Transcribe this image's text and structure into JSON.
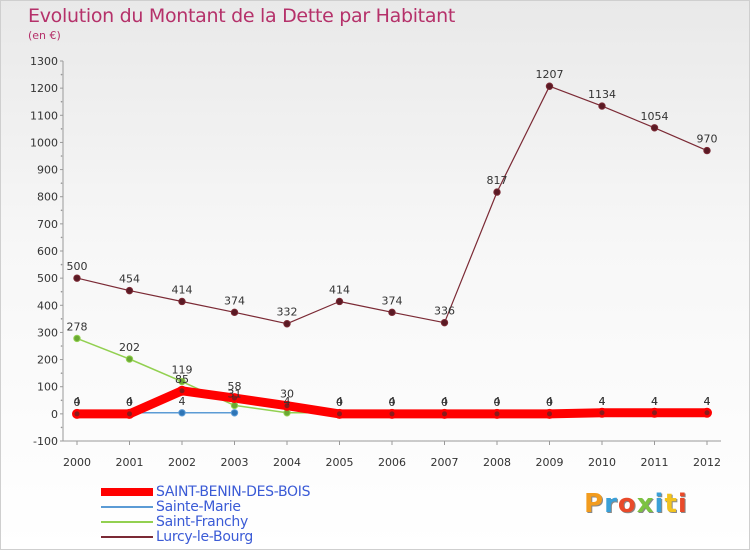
{
  "header": {
    "title": "Evolution du Montant de la Dette par Habitant",
    "subtitle": "(en €)"
  },
  "logo": {
    "text": "Proxiti"
  },
  "chart_data": {
    "type": "line",
    "title": "Evolution du Montant de la Dette par Habitant",
    "subtitle": "(en €)",
    "xlabel": "",
    "ylabel": "",
    "x": [
      "2000",
      "2001",
      "2002",
      "2003",
      "2004",
      "2005",
      "2006",
      "2007",
      "2008",
      "2009",
      "2010",
      "2011",
      "2012"
    ],
    "ylim": [
      -100,
      1300
    ],
    "yticks": [
      -100,
      0,
      100,
      200,
      300,
      400,
      500,
      600,
      700,
      800,
      900,
      1000,
      1100,
      1200,
      1300
    ],
    "grid": false,
    "legend_position": "bottom-left",
    "series": [
      {
        "name": "SAINT-BENIN-DES-BOIS",
        "color": "#ff0000",
        "marker": "#8b1a1a",
        "values": [
          0,
          0,
          85,
          58,
          30,
          0,
          0,
          0,
          0,
          0,
          4,
          4,
          4
        ]
      },
      {
        "name": "Sainte-Marie",
        "color": "#5b9bd5",
        "marker": "#2e75b6",
        "values": [
          4,
          4,
          4,
          4,
          null,
          null,
          null,
          null,
          null,
          null,
          null,
          null,
          null
        ]
      },
      {
        "name": "Saint-Franchy",
        "color": "#92d050",
        "marker": "#6aa832",
        "values": [
          278,
          202,
          119,
          31,
          4,
          4,
          4,
          4,
          4,
          4,
          4,
          4,
          4
        ]
      },
      {
        "name": "Lurcy-le-Bourg",
        "color": "#7b2a35",
        "marker": "#5a1a24",
        "values": [
          500,
          454,
          414,
          374,
          332,
          414,
          374,
          336,
          817,
          1207,
          1134,
          1054,
          970
        ]
      }
    ],
    "labeled_points": [
      {
        "x": "2000",
        "text": "500",
        "value": 500
      },
      {
        "x": "2001",
        "text": "454",
        "value": 454
      },
      {
        "x": "2002",
        "text": "414",
        "value": 414
      },
      {
        "x": "2003",
        "text": "374",
        "value": 374
      },
      {
        "x": "2004",
        "text": "332",
        "value": 332
      },
      {
        "x": "2005",
        "text": "414",
        "value": 414
      },
      {
        "x": "2006",
        "text": "374",
        "value": 374
      },
      {
        "x": "2007",
        "text": "336",
        "value": 336
      },
      {
        "x": "2008",
        "text": "817",
        "value": 817
      },
      {
        "x": "2009",
        "text": "1207",
        "value": 1207
      },
      {
        "x": "2010",
        "text": "1134",
        "value": 1134
      },
      {
        "x": "2011",
        "text": "1054",
        "value": 1054
      },
      {
        "x": "2012",
        "text": "970",
        "value": 970
      },
      {
        "x": "2000",
        "text": "278",
        "value": 278
      },
      {
        "x": "2001",
        "text": "202",
        "value": 202
      },
      {
        "x": "2002",
        "text": "119",
        "value": 119
      },
      {
        "x": "2002",
        "text": "85",
        "value": 85
      },
      {
        "x": "2003",
        "text": "58",
        "value": 58
      },
      {
        "x": "2003",
        "text": "31",
        "value": 31
      },
      {
        "x": "2004",
        "text": "30",
        "value": 30
      },
      {
        "x": "2000",
        "text": "0",
        "value": 0
      },
      {
        "x": "2000",
        "text": "4",
        "value": 4
      },
      {
        "x": "2001",
        "text": "0",
        "value": 0
      },
      {
        "x": "2001",
        "text": "4",
        "value": 4
      },
      {
        "x": "2002",
        "text": "4",
        "value": 4
      },
      {
        "x": "2004",
        "text": "4",
        "value": 4
      },
      {
        "x": "2005",
        "text": "0",
        "value": 0
      },
      {
        "x": "2005",
        "text": "4",
        "value": 4
      },
      {
        "x": "2006",
        "text": "0",
        "value": 0
      },
      {
        "x": "2006",
        "text": "4",
        "value": 4
      },
      {
        "x": "2007",
        "text": "0",
        "value": 0
      },
      {
        "x": "2007",
        "text": "4",
        "value": 4
      },
      {
        "x": "2008",
        "text": "0",
        "value": 0
      },
      {
        "x": "2008",
        "text": "4",
        "value": 4
      },
      {
        "x": "2009",
        "text": "0",
        "value": 0
      },
      {
        "x": "2009",
        "text": "4",
        "value": 4
      },
      {
        "x": "2010",
        "text": "4",
        "value": 4
      },
      {
        "x": "2010",
        "text": "4",
        "value": 4
      },
      {
        "x": "2011",
        "text": "4",
        "value": 4
      },
      {
        "x": "2011",
        "text": "4",
        "value": 4
      },
      {
        "x": "2012",
        "text": "4",
        "value": 4
      },
      {
        "x": "2012",
        "text": "4",
        "value": 4
      }
    ]
  }
}
